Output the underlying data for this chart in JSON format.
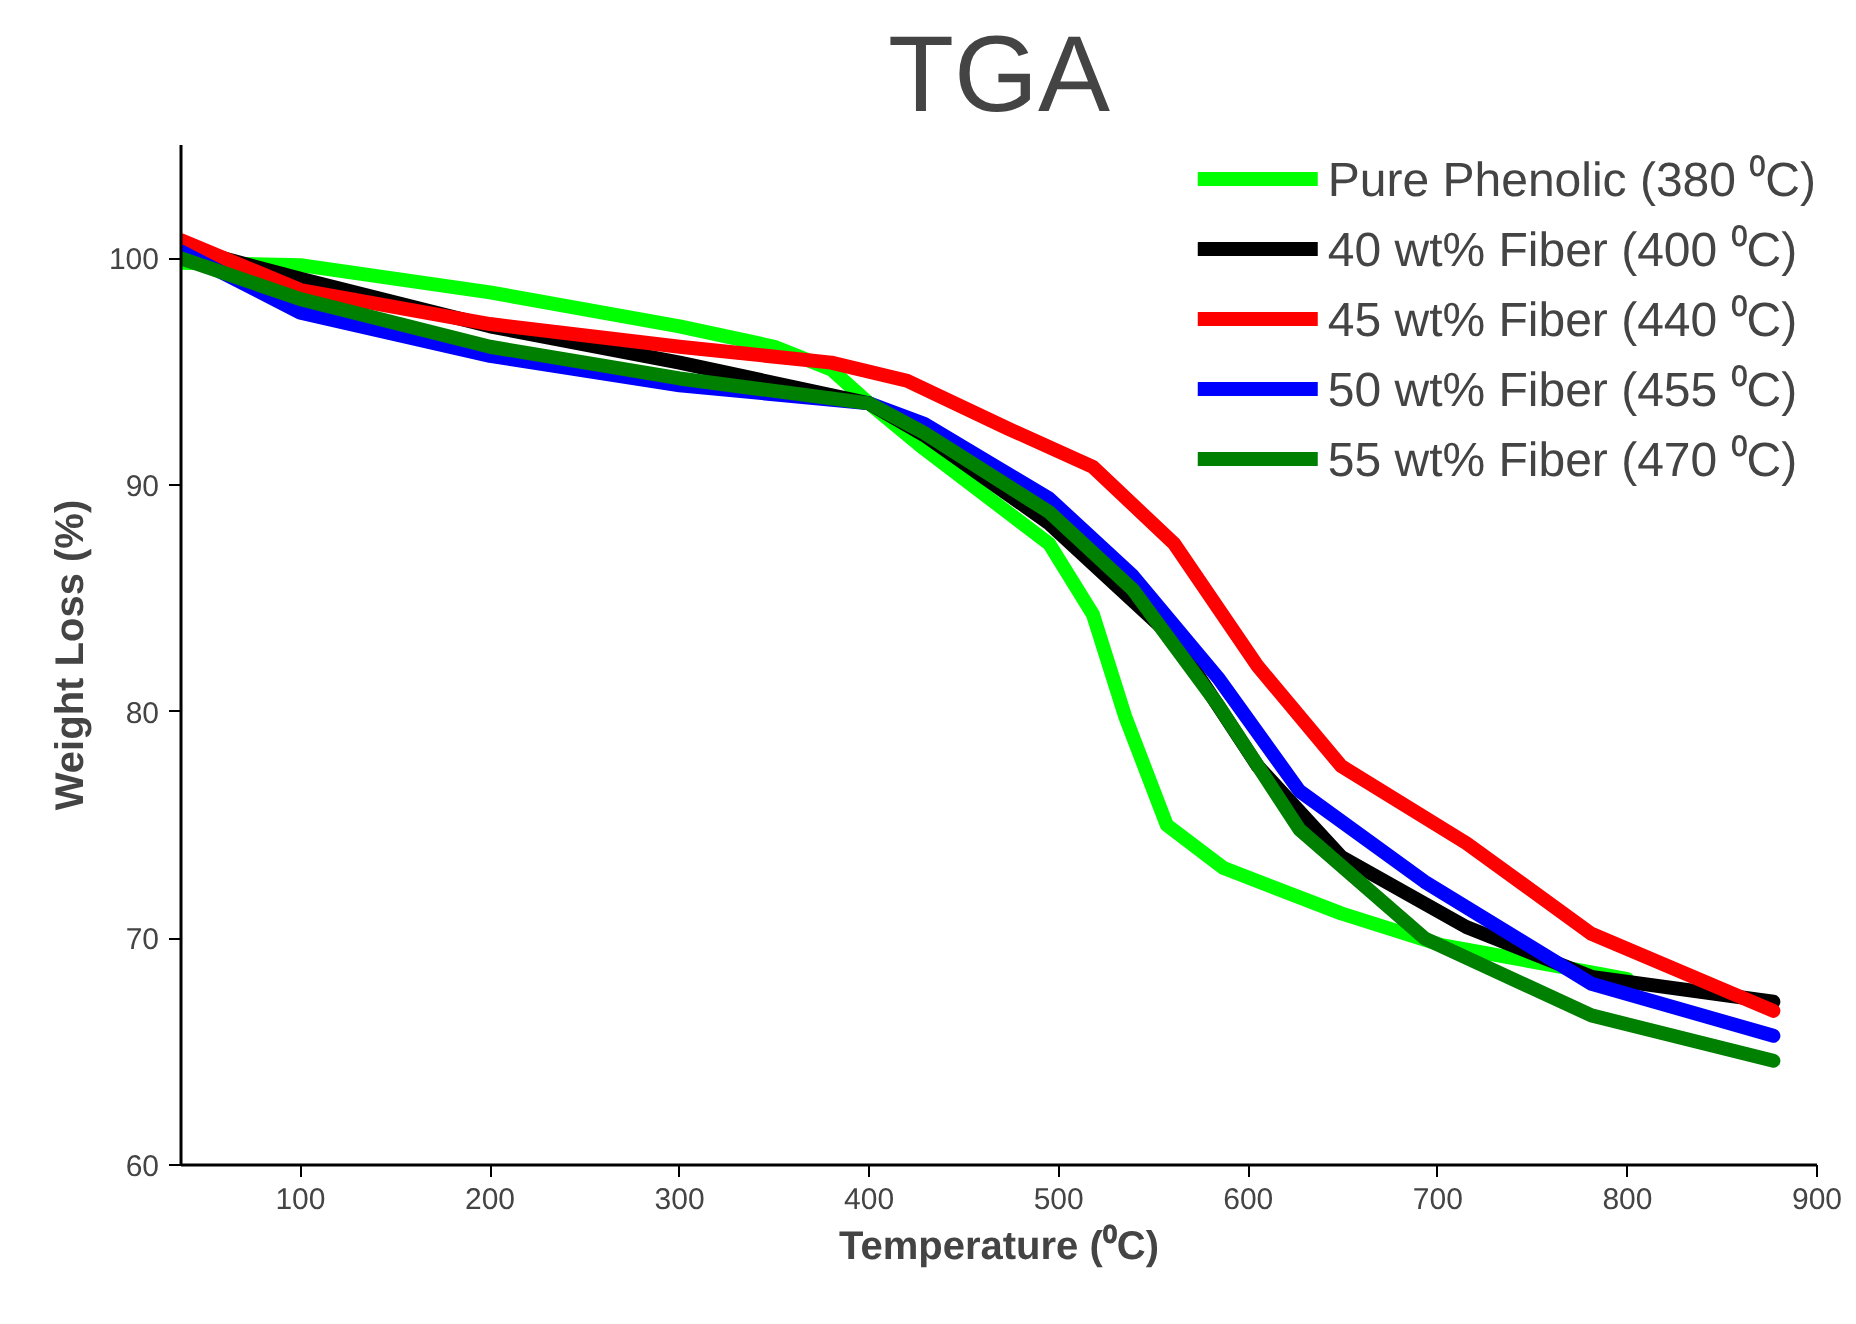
{
  "chart_data": {
    "type": "line",
    "title": "TGA",
    "xlabel": "Temperature (⁰C)",
    "ylabel": "Weight Loss (%)",
    "xlim": [
      37,
      900
    ],
    "ylim": [
      60,
      105
    ],
    "xticks": [
      100,
      200,
      300,
      400,
      500,
      600,
      700,
      800,
      900
    ],
    "yticks": [
      60,
      70,
      80,
      90,
      100
    ],
    "grid": false,
    "legend": "top right",
    "line_style": "solid",
    "series": [
      {
        "name": "Pure Phenolic (380 ⁰C)",
        "color": "#00ff00",
        "x": [
          37,
          100,
          200,
          300,
          350,
          380,
          400,
          429,
          495,
          518,
          535,
          557,
          587,
          649,
          702,
          781,
          800
        ],
        "values": [
          99.8,
          99.7,
          98.5,
          97.0,
          96.1,
          95.1,
          93.6,
          91.6,
          87.4,
          84.3,
          79.8,
          75.0,
          73.1,
          71.1,
          69.7,
          68.5,
          68.2
        ]
      },
      {
        "name": "40 wt% Fiber (400 ⁰C)",
        "color": "#000000",
        "x": [
          37,
          100,
          200,
          300,
          400,
          429,
          495,
          561,
          605,
          649,
          715,
          781,
          877
        ],
        "values": [
          100.5,
          99.1,
          97.0,
          95.4,
          93.6,
          92.2,
          88.3,
          83.2,
          77.6,
          73.6,
          70.5,
          68.3,
          67.2
        ]
      },
      {
        "name": "45 wt% Fiber (440 ⁰C)",
        "color": "#ff0000",
        "x": [
          37,
          100,
          200,
          300,
          380,
          420,
          473,
          518,
          561,
          605,
          649,
          715,
          781,
          877
        ],
        "values": [
          100.8,
          98.6,
          97.1,
          96.1,
          95.4,
          94.6,
          92.5,
          90.8,
          87.4,
          82.0,
          77.6,
          74.2,
          70.2,
          66.8
        ]
      },
      {
        "name": "50 wt% Fiber (455 ⁰C)",
        "color": "#0000ff",
        "x": [
          37,
          100,
          200,
          300,
          400,
          429,
          495,
          539,
          584,
          627,
          693,
          781,
          877
        ],
        "values": [
          100.3,
          97.6,
          95.7,
          94.4,
          93.6,
          92.7,
          89.4,
          86.0,
          81.5,
          76.5,
          72.5,
          68.0,
          65.7
        ]
      },
      {
        "name": "55 wt% Fiber (470 ⁰C)",
        "color": "#008000",
        "x": [
          37,
          100,
          200,
          300,
          400,
          429,
          495,
          539,
          584,
          627,
          693,
          781,
          877
        ],
        "values": [
          100.0,
          98.2,
          96.1,
          94.7,
          93.6,
          92.3,
          88.8,
          85.4,
          80.3,
          74.8,
          70.0,
          66.6,
          64.6
        ]
      }
    ]
  }
}
